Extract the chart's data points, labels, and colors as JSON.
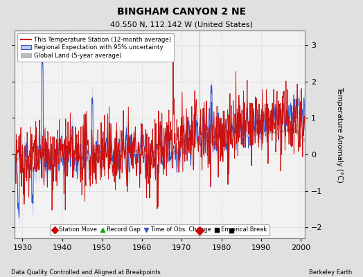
{
  "title": "BINGHAM CANYON 2 NE",
  "subtitle": "40.550 N, 112.142 W (United States)",
  "ylabel": "Temperature Anomaly (°C)",
  "xlabel_left": "Data Quality Controlled and Aligned at Breakpoints",
  "xlabel_right": "Berkeley Earth",
  "year_start": 1925,
  "year_end": 2001,
  "ylim": [
    -2.3,
    3.4
  ],
  "yticks": [
    -2,
    -1,
    0,
    1,
    2,
    3
  ],
  "xticks": [
    1930,
    1940,
    1950,
    1960,
    1970,
    1980,
    1990,
    2000
  ],
  "bg_color": "#e0e0e0",
  "plot_bg_color": "#f2f2f2",
  "station_move_year": 1974.5,
  "station_move_y": -2.1,
  "empirical_break_year": 1982.5,
  "empirical_break_y": -2.1,
  "vertical_line_year": 1974.5,
  "legend_labels": [
    "This Temperature Station (12-month average)",
    "Regional Expectation with 95% uncertainty",
    "Global Land (5-year average)"
  ],
  "seed": 42
}
